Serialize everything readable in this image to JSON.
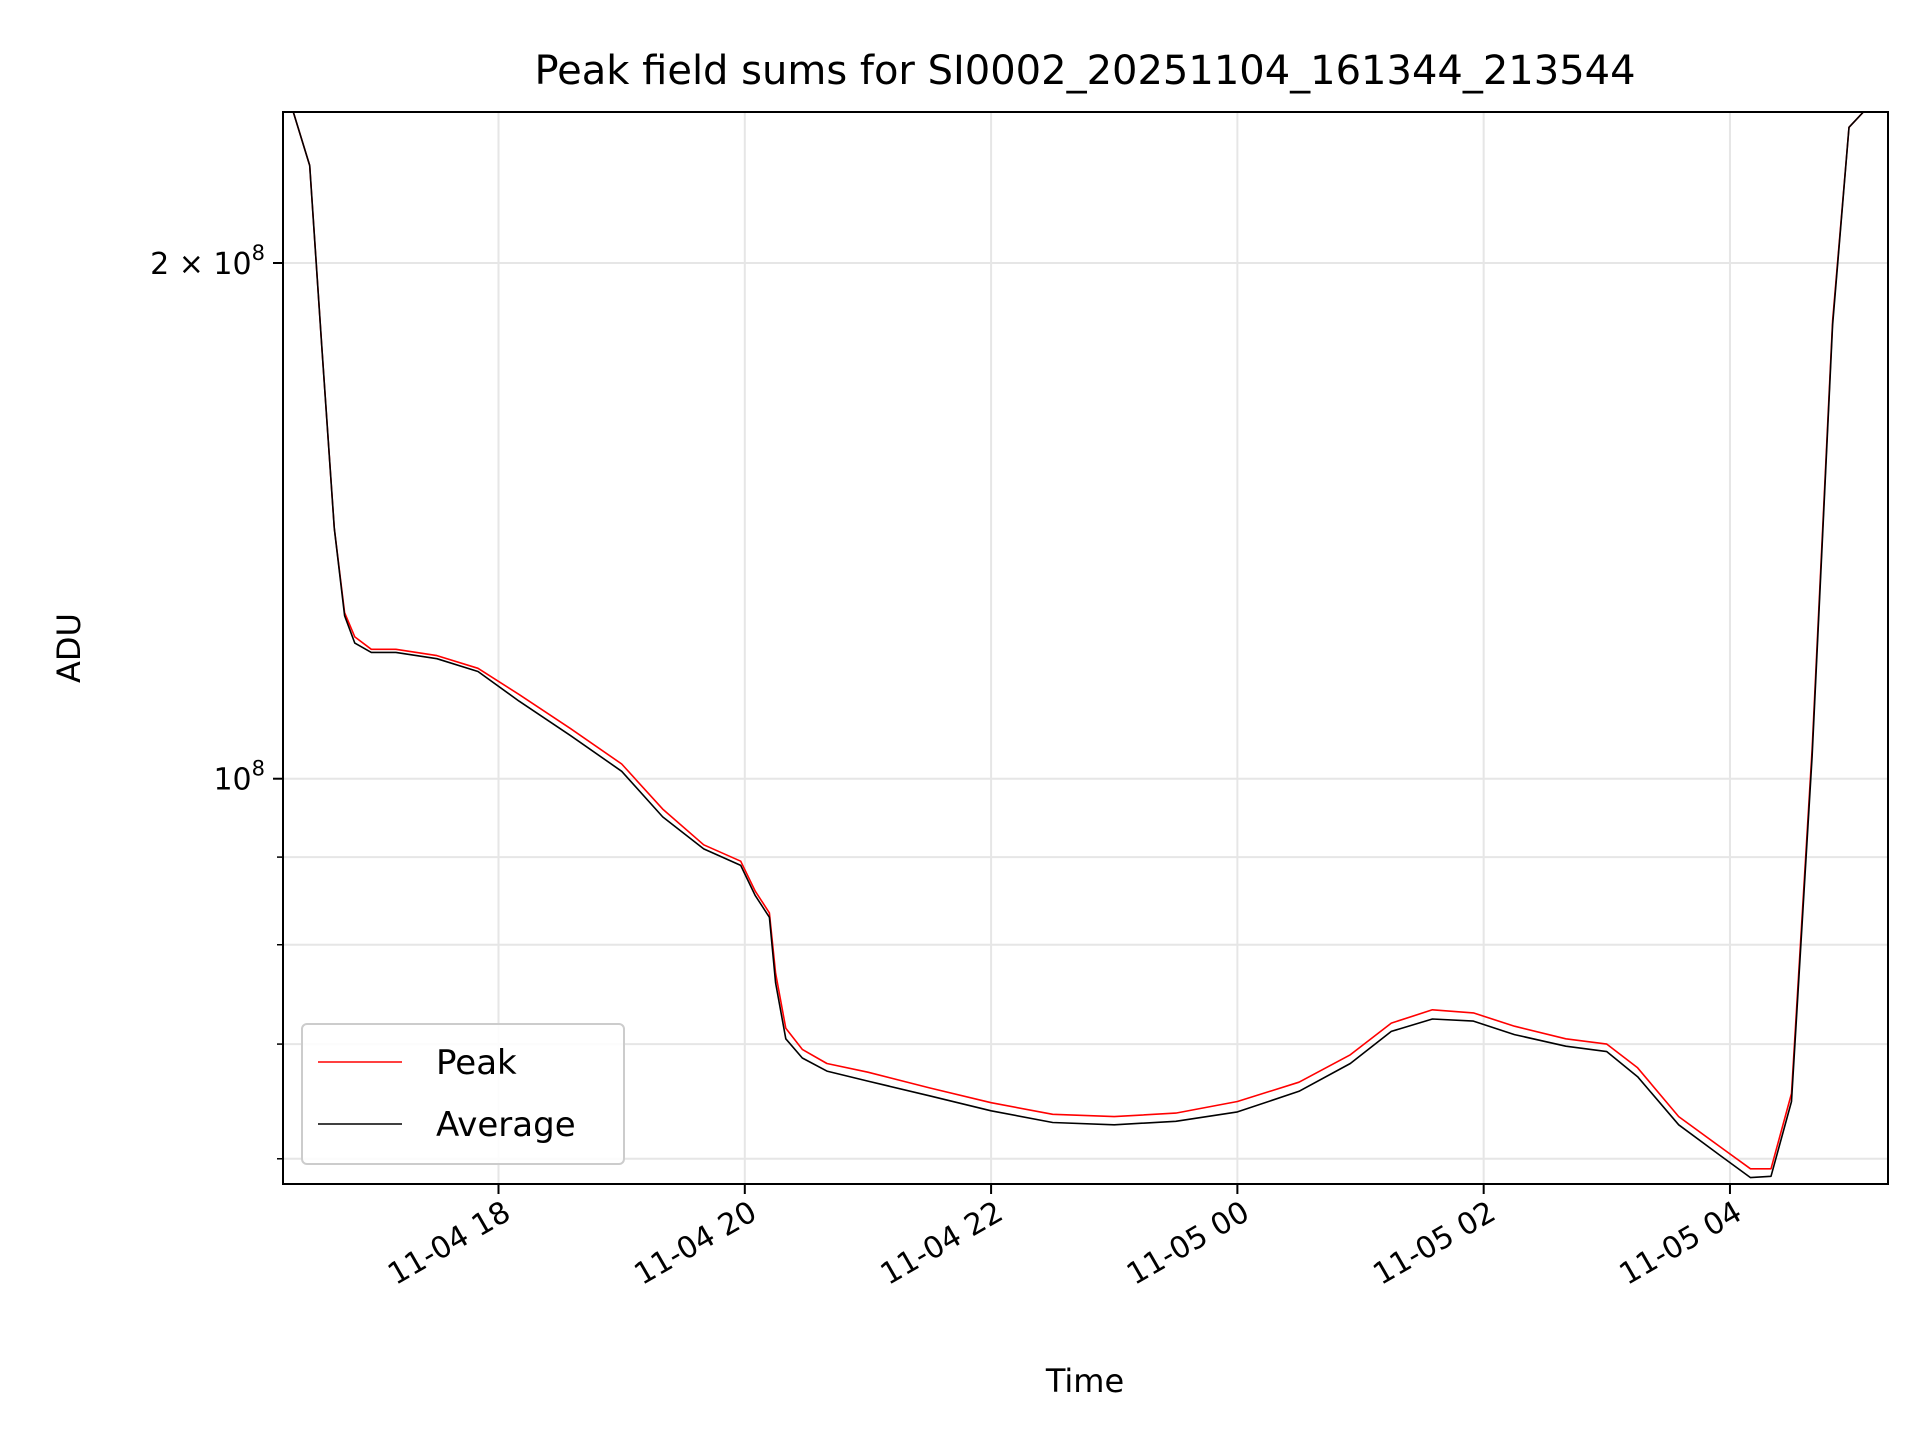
{
  "chart_data": {
    "type": "line",
    "title": "Peak field sums for SI0002_20251104_161344_213544",
    "xlabel": "Time",
    "ylabel": "ADU",
    "yscale": "log",
    "ylim": [
      58000000,
      245000000
    ],
    "xlim": [
      "2025-11-04 16:15",
      "2025-11-05 05:17"
    ],
    "grid": true,
    "legend_position": "lower-left",
    "x_ticks": [
      {
        "t": "2025-11-04 18:00",
        "label": "11-04 18"
      },
      {
        "t": "2025-11-04 20:00",
        "label": "11-04 20"
      },
      {
        "t": "2025-11-04 22:00",
        "label": "11-04 22"
      },
      {
        "t": "2025-11-05 00:00",
        "label": "11-05 00"
      },
      {
        "t": "2025-11-05 02:00",
        "label": "11-05 02"
      },
      {
        "t": "2025-11-05 04:00",
        "label": "11-05 04"
      }
    ],
    "y_ticks": [
      {
        "value": 100000000,
        "base": "10",
        "exp": "8"
      },
      {
        "value": 200000000,
        "base": "2 × 10",
        "exp": "8"
      }
    ],
    "y_minor_ticks": [
      60000000,
      70000000,
      80000000,
      90000000
    ],
    "x": [
      "2025-11-04 16:20",
      "2025-11-04 16:28",
      "2025-11-04 16:34",
      "2025-11-04 16:40",
      "2025-11-04 16:45",
      "2025-11-04 16:50",
      "2025-11-04 16:58",
      "2025-11-04 17:10",
      "2025-11-04 17:30",
      "2025-11-04 17:50",
      "2025-11-04 18:10",
      "2025-11-04 18:35",
      "2025-11-04 19:00",
      "2025-11-04 19:20",
      "2025-11-04 19:40",
      "2025-11-04 19:58",
      "2025-11-04 20:05",
      "2025-11-04 20:12",
      "2025-11-04 20:15",
      "2025-11-04 20:20",
      "2025-11-04 20:28",
      "2025-11-04 20:40",
      "2025-11-04 21:00",
      "2025-11-04 21:30",
      "2025-11-04 22:00",
      "2025-11-04 22:30",
      "2025-11-04 23:00",
      "2025-11-04 23:30",
      "2025-11-05 00:00",
      "2025-11-05 00:30",
      "2025-11-05 00:55",
      "2025-11-05 01:15",
      "2025-11-05 01:35",
      "2025-11-05 01:55",
      "2025-11-05 02:15",
      "2025-11-05 02:40",
      "2025-11-05 03:00",
      "2025-11-05 03:15",
      "2025-11-05 03:35",
      "2025-11-05 03:55",
      "2025-11-05 04:10",
      "2025-11-05 04:20",
      "2025-11-05 04:30",
      "2025-11-05 04:40",
      "2025-11-05 04:50",
      "2025-11-05 04:58",
      "2025-11-05 05:05"
    ],
    "series": [
      {
        "name": "Peak",
        "color": "#ff0000",
        "values": [
          245000000,
          228000000,
          178000000,
          140000000,
          125000000,
          121000000,
          119000000,
          119000000,
          118000000,
          116000000,
          112000000,
          107000000,
          102000000,
          96000000,
          91500000,
          89500000,
          86000000,
          83500000,
          77000000,
          71500000,
          69500000,
          68200000,
          67400000,
          66000000,
          64700000,
          63700000,
          63500000,
          63800000,
          64800000,
          66500000,
          69000000,
          72000000,
          73300000,
          73000000,
          71700000,
          70500000,
          70000000,
          67800000,
          63500000,
          61000000,
          59200000,
          59200000,
          65500000,
          104000000,
          185000000,
          240000000,
          245000000
        ]
      },
      {
        "name": "Average",
        "color": "#000000",
        "values": [
          245000000,
          228000000,
          178000000,
          140000000,
          124500000,
          120000000,
          118500000,
          118500000,
          117500000,
          115500000,
          111000000,
          106000000,
          101000000,
          95000000,
          91000000,
          89000000,
          85500000,
          83000000,
          76000000,
          70500000,
          68700000,
          67500000,
          66600000,
          65300000,
          64000000,
          63000000,
          62800000,
          63100000,
          63900000,
          65700000,
          68200000,
          71200000,
          72400000,
          72200000,
          70900000,
          69800000,
          69300000,
          67000000,
          62800000,
          60300000,
          58500000,
          58600000,
          64800000,
          103000000,
          184000000,
          240000000,
          245000000
        ]
      }
    ]
  }
}
